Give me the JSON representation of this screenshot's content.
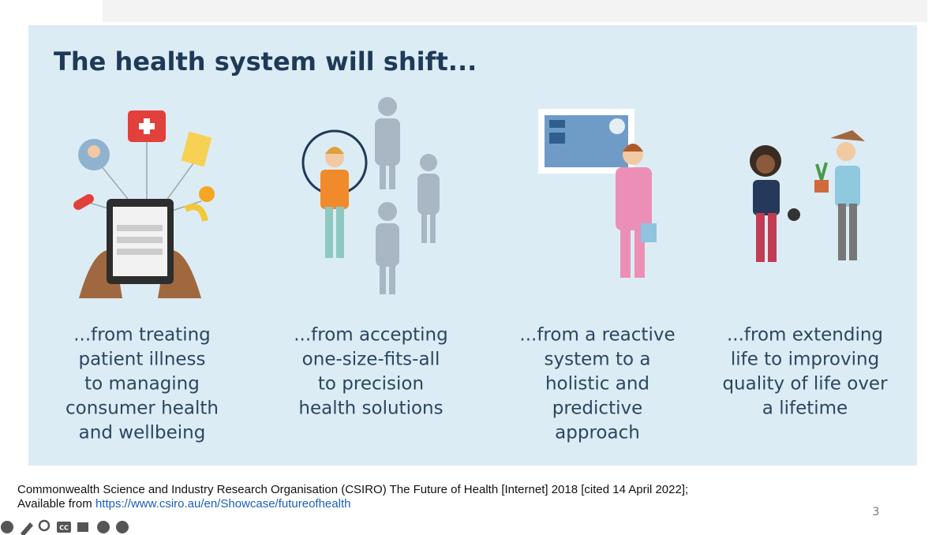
{
  "slide": {
    "title": "The health system will shift...",
    "columns": [
      {
        "lines": [
          "...from treating",
          "patient illness",
          "to managing",
          "consumer health",
          "and wellbeing"
        ]
      },
      {
        "lines": [
          "...from accepting",
          "one-size-fits-all",
          "to precision",
          "health solutions"
        ]
      },
      {
        "lines": [
          "...from a reactive",
          "system to a",
          "holistic and",
          "predictive",
          "approach"
        ]
      },
      {
        "lines": [
          "...from extending",
          "life to improving",
          "quality of life over",
          "a lifetime"
        ]
      }
    ],
    "page_number": "3"
  },
  "citation": {
    "text": "Commonwealth Science and Industry Research Organisation (CSIRO) The Future of Health [Internet] 2018 [cited 14 April 2022];",
    "available_prefix": "Available from",
    "link": "https://www.csiro.au/en/Showcase/futureofhealth"
  },
  "toolbar": {
    "cc_label": "CC"
  }
}
